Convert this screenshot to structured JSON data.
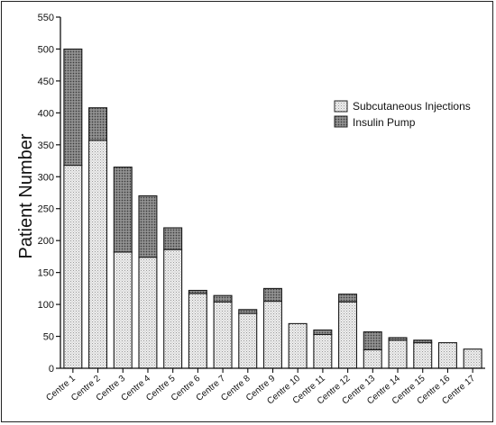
{
  "chart_data": {
    "type": "bar",
    "stacked": true,
    "title": "",
    "xlabel": "",
    "ylabel": "Patient Number",
    "ylim": [
      0,
      550
    ],
    "yticks": [
      0,
      50,
      100,
      150,
      200,
      250,
      300,
      350,
      400,
      450,
      500,
      550
    ],
    "grid": false,
    "legend_position": "top-right",
    "categories": [
      "Centre 1",
      "Centre 2",
      "Centre 3",
      "Centre 4",
      "Centre 5",
      "Centre 6",
      "Centre 7",
      "Centre 8",
      "Centre 9",
      "Centre 10",
      "Centre 11",
      "Centre 12",
      "Centre 13",
      "Centre 14",
      "Centre 15",
      "Centre 16",
      "Centre 17"
    ],
    "series": [
      {
        "name": "Subcutaneous Injections",
        "color": "#e6e6e6",
        "values": [
          318,
          357,
          182,
          174,
          186,
          117,
          104,
          86,
          105,
          70,
          53,
          104,
          29,
          44,
          40,
          40,
          30
        ]
      },
      {
        "name": "Insulin Pump",
        "color": "#8c8c8c",
        "values": [
          182,
          51,
          133,
          96,
          34,
          5,
          10,
          6,
          20,
          0,
          7,
          12,
          28,
          4,
          4,
          0,
          0
        ]
      }
    ]
  }
}
